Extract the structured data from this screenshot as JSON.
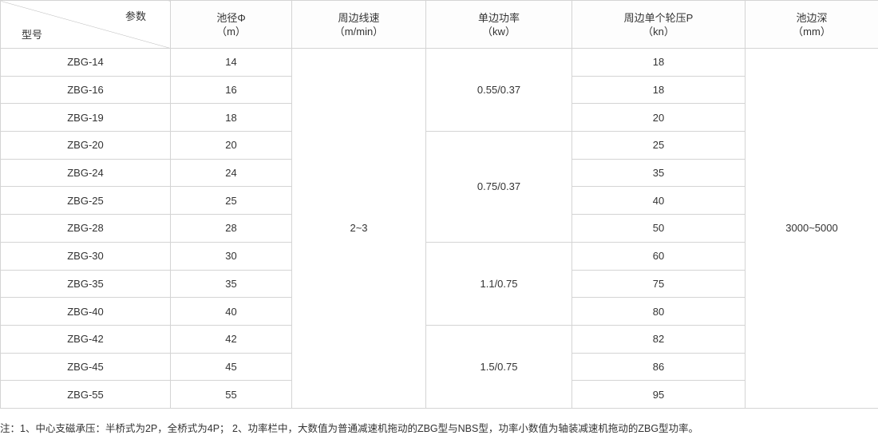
{
  "header": {
    "corner_top": "参数",
    "corner_bottom": "型号",
    "columns": [
      {
        "name": "池径Φ",
        "unit": "（m）"
      },
      {
        "name": "周边线速",
        "unit": "（m/min）"
      },
      {
        "name": "单边功率",
        "unit": "（kw）"
      },
      {
        "name": "周边单个轮压P",
        "unit": "（kn）"
      },
      {
        "name": "池边深",
        "unit": "（mm）"
      }
    ]
  },
  "rows": [
    {
      "model": "ZBG-14",
      "diameter": "14",
      "load": "18"
    },
    {
      "model": "ZBG-16",
      "diameter": "16",
      "load": "18"
    },
    {
      "model": "ZBG-19",
      "diameter": "18",
      "load": "20"
    },
    {
      "model": "ZBG-20",
      "diameter": "20",
      "load": "25"
    },
    {
      "model": "ZBG-24",
      "diameter": "24",
      "load": "35"
    },
    {
      "model": "ZBG-25",
      "diameter": "25",
      "load": "40"
    },
    {
      "model": "ZBG-28",
      "diameter": "28",
      "load": "50"
    },
    {
      "model": "ZBG-30",
      "diameter": "30",
      "load": "60"
    },
    {
      "model": "ZBG-35",
      "diameter": "35",
      "load": "75"
    },
    {
      "model": "ZBG-40",
      "diameter": "40",
      "load": "80"
    },
    {
      "model": "ZBG-42",
      "diameter": "42",
      "load": "82"
    },
    {
      "model": "ZBG-45",
      "diameter": "45",
      "load": "86"
    },
    {
      "model": "ZBG-55",
      "diameter": "55",
      "load": "95"
    }
  ],
  "merged": {
    "speed": "2~3",
    "power": [
      "0.55/0.37",
      "0.75/0.37",
      "1.1/0.75",
      "1.5/0.75"
    ],
    "depth": "3000~5000"
  },
  "note": "注：1、中心支磁承压：半桥式为2P，全桥式为4P；  2、功率栏中，大数值为普通减速机拖动的ZBG型与NBS型，功率小数值为轴装减速机拖动的ZBG型功率。"
}
